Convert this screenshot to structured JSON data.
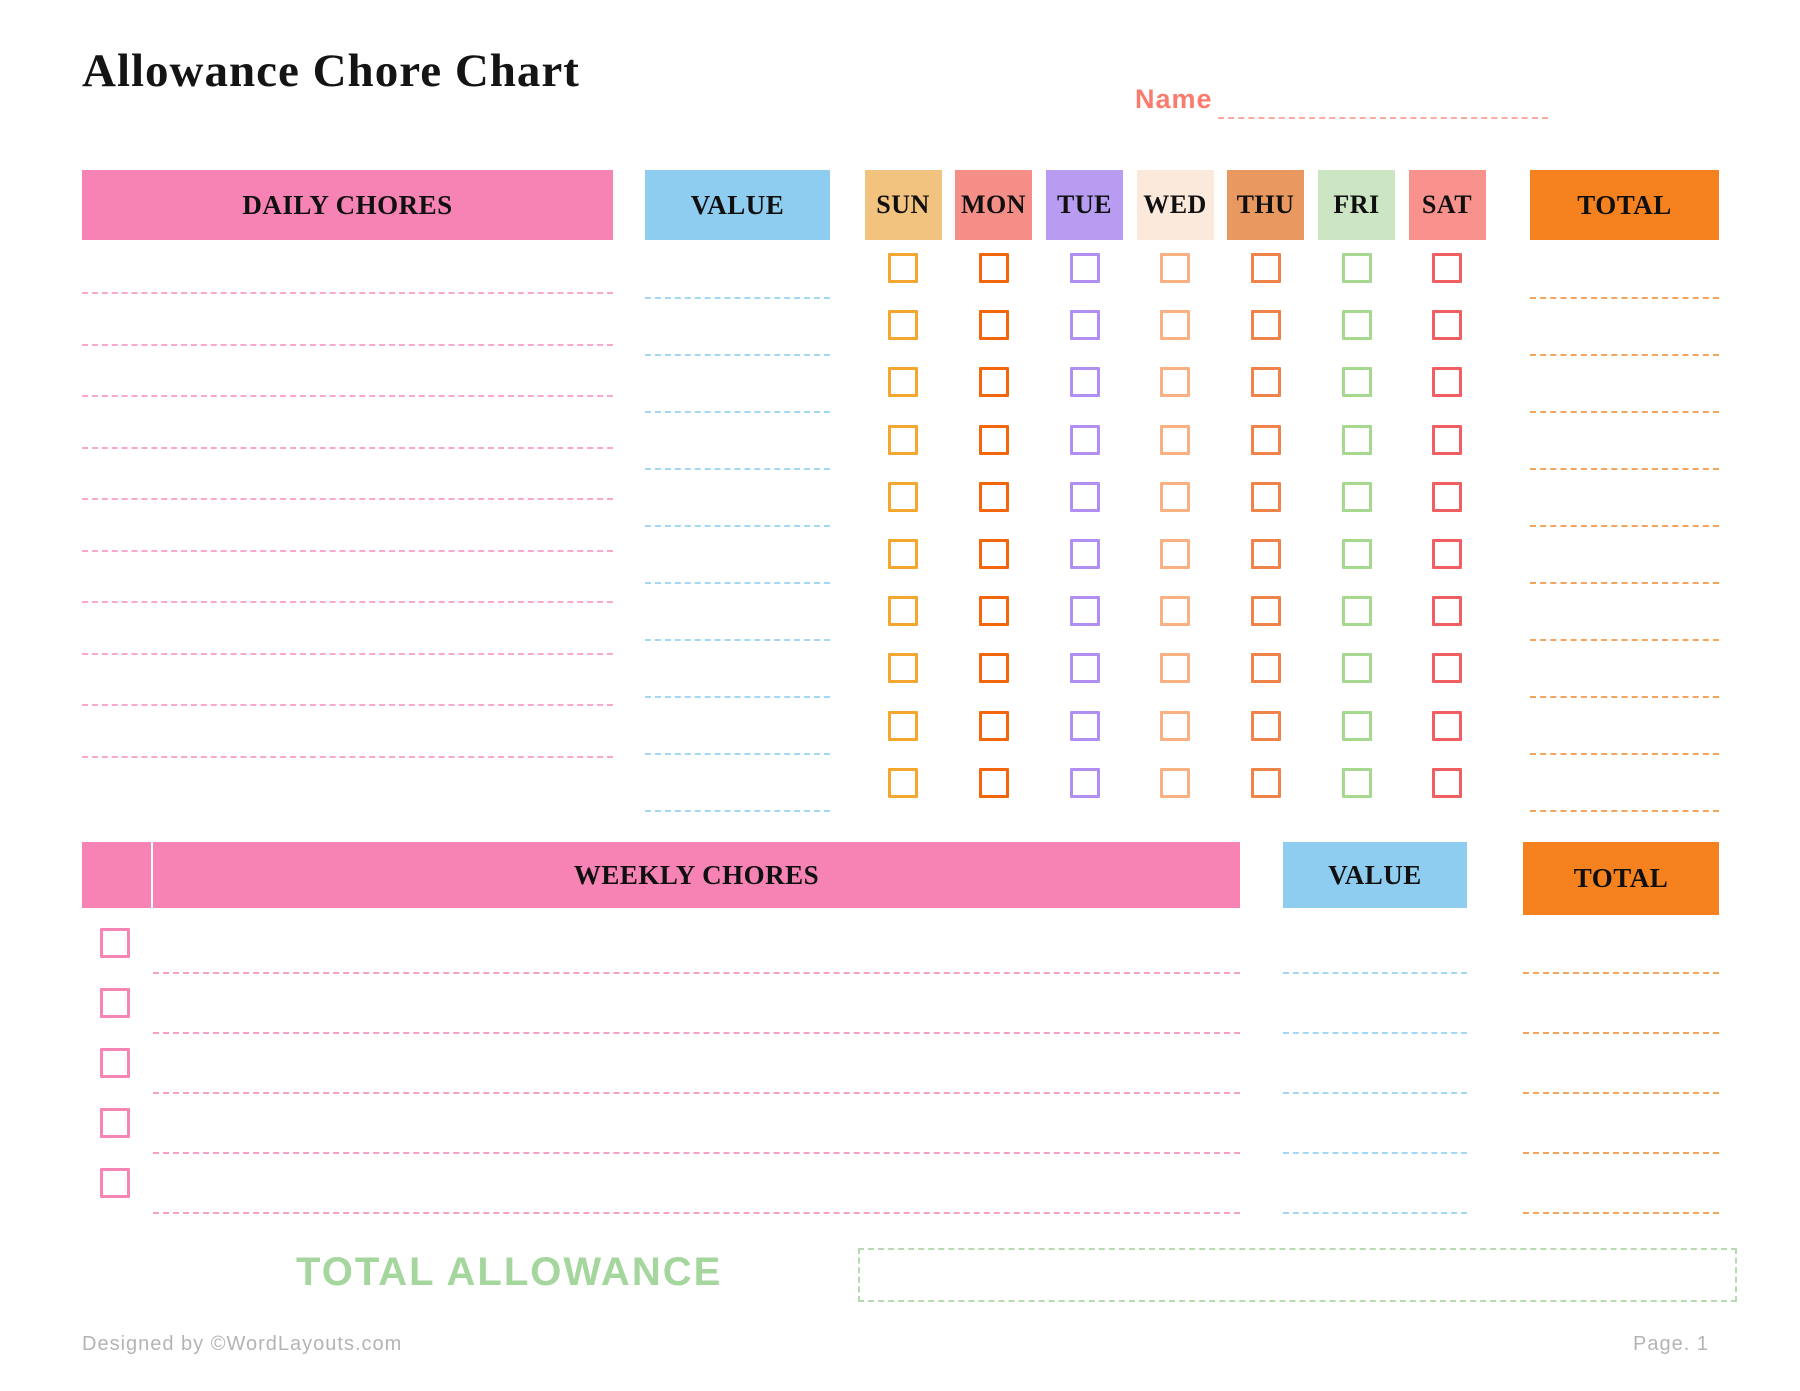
{
  "page": {
    "title": "Allowance Chore Chart",
    "name_label": "Name",
    "total_allowance_label": "TOTAL ALLOWANCE",
    "footer_left": "Designed by ©WordLayouts.com",
    "footer_right": "Page. 1"
  },
  "daily": {
    "header": "DAILY CHORES",
    "value_header": "VALUE",
    "total_header": "TOTAL",
    "row_count": 10,
    "days": [
      {
        "label": "SUN",
        "header_bg": "#f2c27f",
        "checkbox_color": "#f3a72e"
      },
      {
        "label": "MON",
        "header_bg": "#f68e88",
        "checkbox_color": "#f3660c"
      },
      {
        "label": "TUE",
        "header_bg": "#b89cf1",
        "checkbox_color": "#b18ef2"
      },
      {
        "label": "WED",
        "header_bg": "#fbe9dc",
        "checkbox_color": "#f9b183"
      },
      {
        "label": "THU",
        "header_bg": "#e9995f",
        "checkbox_color": "#f0834a"
      },
      {
        "label": "FRI",
        "header_bg": "#cce5c3",
        "checkbox_color": "#a7d88f"
      },
      {
        "label": "SAT",
        "header_bg": "#f9918c",
        "checkbox_color": "#f15f62"
      }
    ]
  },
  "weekly": {
    "header": "WEEKLY CHORES",
    "value_header": "VALUE",
    "total_header": "TOTAL",
    "row_count": 5,
    "checkbox_color": "#f585b5"
  },
  "colors": {
    "section_pink": "#f783b5",
    "value_blue": "#8ecdf0",
    "total_orange": "#f5821f",
    "daily_line_pink": "#f8a8cc",
    "value_line_blue": "#a3d7f2",
    "total_line_orange": "#f5a45e",
    "weekly_line_pink": "#f89fc6",
    "name_coral": "#f97c6e",
    "name_line": "#fbaaa2",
    "allowance_green": "#a5d69e",
    "allowance_box_border": "#b7dab0",
    "footer_gray": "#b4b4b4"
  }
}
